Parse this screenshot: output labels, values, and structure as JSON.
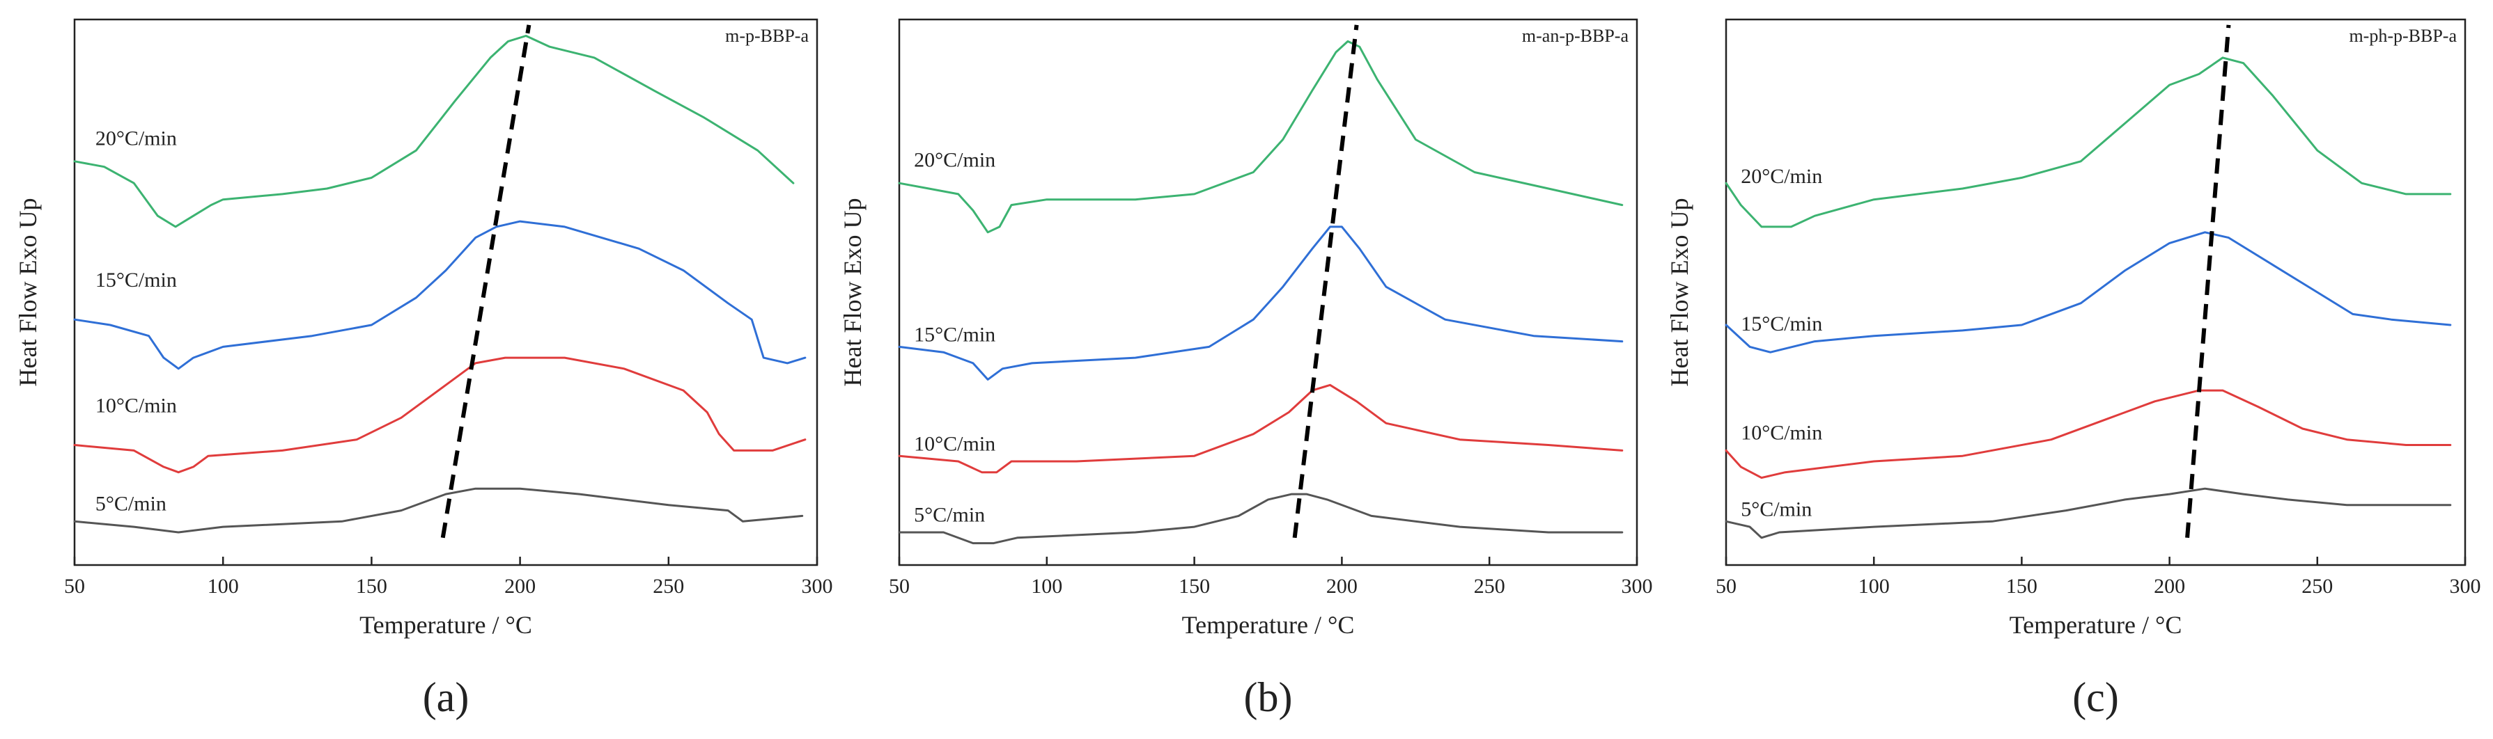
{
  "colors": {
    "20": "#3cb371",
    "15": "#2f6fd6",
    "10": "#e03c3c",
    "5": "#555555",
    "trend": "#000000",
    "axis": "#222222"
  },
  "chart_data": [
    {
      "type": "line",
      "panel_label": "(a)",
      "title": "m-p-BBP-a",
      "xlabel": "Temperature / °C",
      "ylabel": "Heat Flow Exo Up",
      "xlim": [
        50,
        300
      ],
      "ylim": [
        0,
        100
      ],
      "x_ticks": [
        "50",
        "100",
        "150",
        "200",
        "250",
        "300"
      ],
      "grid": false,
      "series": [
        {
          "name": "20°C/min",
          "rate": "20",
          "label_at": [
            57,
            77
          ],
          "points": [
            [
              50,
              74
            ],
            [
              60,
              73
            ],
            [
              70,
              70
            ],
            [
              78,
              64
            ],
            [
              84,
              62
            ],
            [
              90,
              64
            ],
            [
              96,
              66
            ],
            [
              100,
              67
            ],
            [
              120,
              68
            ],
            [
              135,
              69
            ],
            [
              150,
              71
            ],
            [
              165,
              76
            ],
            [
              178,
              85
            ],
            [
              190,
              93
            ],
            [
              196,
              96
            ],
            [
              202,
              97
            ],
            [
              210,
              95
            ],
            [
              225,
              93
            ],
            [
              245,
              87
            ],
            [
              262,
              82
            ],
            [
              280,
              76
            ],
            [
              292,
              70
            ]
          ]
        },
        {
          "name": "15°C/min",
          "rate": "15",
          "label_at": [
            57,
            51
          ],
          "points": [
            [
              50,
              45
            ],
            [
              62,
              44
            ],
            [
              75,
              42
            ],
            [
              80,
              38
            ],
            [
              85,
              36
            ],
            [
              90,
              38
            ],
            [
              100,
              40
            ],
            [
              130,
              42
            ],
            [
              150,
              44
            ],
            [
              165,
              49
            ],
            [
              175,
              54
            ],
            [
              185,
              60
            ],
            [
              192,
              62
            ],
            [
              200,
              63
            ],
            [
              215,
              62
            ],
            [
              240,
              58
            ],
            [
              255,
              54
            ],
            [
              270,
              48
            ],
            [
              278,
              45
            ],
            [
              282,
              38
            ],
            [
              290,
              37
            ],
            [
              296,
              38
            ]
          ]
        },
        {
          "name": "10°C/min",
          "rate": "10",
          "label_at": [
            57,
            28
          ],
          "points": [
            [
              50,
              22
            ],
            [
              70,
              21
            ],
            [
              80,
              18
            ],
            [
              85,
              17
            ],
            [
              90,
              18
            ],
            [
              95,
              20
            ],
            [
              120,
              21
            ],
            [
              145,
              23
            ],
            [
              160,
              27
            ],
            [
              175,
              33
            ],
            [
              185,
              37
            ],
            [
              195,
              38
            ],
            [
              215,
              38
            ],
            [
              235,
              36
            ],
            [
              255,
              32
            ],
            [
              263,
              28
            ],
            [
              267,
              24
            ],
            [
              272,
              21
            ],
            [
              285,
              21
            ],
            [
              296,
              23
            ]
          ]
        },
        {
          "name": "5°C/min",
          "rate": "5",
          "label_at": [
            57,
            10
          ],
          "points": [
            [
              50,
              8
            ],
            [
              70,
              7
            ],
            [
              85,
              6
            ],
            [
              100,
              7
            ],
            [
              140,
              8
            ],
            [
              160,
              10
            ],
            [
              175,
              13
            ],
            [
              185,
              14
            ],
            [
              200,
              14
            ],
            [
              220,
              13
            ],
            [
              250,
              11
            ],
            [
              270,
              10
            ],
            [
              275,
              8
            ],
            [
              295,
              9
            ]
          ]
        }
      ],
      "trend_line": {
        "x": [
          174,
          203
        ]
      }
    },
    {
      "type": "line",
      "panel_label": "(b)",
      "title": "m-an-p-BBP-a",
      "xlabel": "Temperature / °C",
      "ylabel": "Heat Flow Exo Up",
      "xlim": [
        50,
        300
      ],
      "ylim": [
        0,
        100
      ],
      "x_ticks": [
        "50",
        "100",
        "150",
        "200",
        "250",
        "300"
      ],
      "grid": false,
      "series": [
        {
          "name": "20°C/min",
          "rate": "20",
          "label_at": [
            55,
            73
          ],
          "points": [
            [
              50,
              70
            ],
            [
              60,
              69
            ],
            [
              70,
              68
            ],
            [
              75,
              65
            ],
            [
              80,
              61
            ],
            [
              84,
              62
            ],
            [
              88,
              66
            ],
            [
              100,
              67
            ],
            [
              130,
              67
            ],
            [
              150,
              68
            ],
            [
              170,
              72
            ],
            [
              180,
              78
            ],
            [
              190,
              87
            ],
            [
              198,
              94
            ],
            [
              202,
              96
            ],
            [
              206,
              95
            ],
            [
              212,
              89
            ],
            [
              225,
              78
            ],
            [
              245,
              72
            ],
            [
              270,
              69
            ],
            [
              295,
              66
            ]
          ]
        },
        {
          "name": "15°C/min",
          "rate": "15",
          "label_at": [
            55,
            41
          ],
          "points": [
            [
              50,
              40
            ],
            [
              65,
              39
            ],
            [
              75,
              37
            ],
            [
              80,
              34
            ],
            [
              85,
              36
            ],
            [
              95,
              37
            ],
            [
              130,
              38
            ],
            [
              155,
              40
            ],
            [
              170,
              45
            ],
            [
              180,
              51
            ],
            [
              190,
              58
            ],
            [
              196,
              62
            ],
            [
              200,
              62
            ],
            [
              206,
              58
            ],
            [
              215,
              51
            ],
            [
              235,
              45
            ],
            [
              265,
              42
            ],
            [
              295,
              41
            ]
          ]
        },
        {
          "name": "10°C/min",
          "rate": "10",
          "label_at": [
            55,
            21
          ],
          "points": [
            [
              50,
              20
            ],
            [
              70,
              19
            ],
            [
              78,
              17
            ],
            [
              83,
              17
            ],
            [
              88,
              19
            ],
            [
              110,
              19
            ],
            [
              150,
              20
            ],
            [
              170,
              24
            ],
            [
              182,
              28
            ],
            [
              190,
              32
            ],
            [
              196,
              33
            ],
            [
              205,
              30
            ],
            [
              215,
              26
            ],
            [
              240,
              23
            ],
            [
              270,
              22
            ],
            [
              295,
              21
            ]
          ]
        },
        {
          "name": "5°C/min",
          "rate": "5",
          "label_at": [
            55,
            8
          ],
          "points": [
            [
              50,
              6
            ],
            [
              65,
              6
            ],
            [
              75,
              4
            ],
            [
              82,
              4
            ],
            [
              90,
              5
            ],
            [
              130,
              6
            ],
            [
              150,
              7
            ],
            [
              165,
              9
            ],
            [
              175,
              12
            ],
            [
              183,
              13
            ],
            [
              188,
              13
            ],
            [
              195,
              12
            ],
            [
              210,
              9
            ],
            [
              240,
              7
            ],
            [
              270,
              6
            ],
            [
              295,
              6
            ]
          ]
        }
      ],
      "trend_line": {
        "x": [
          184,
          205
        ]
      }
    },
    {
      "type": "line",
      "panel_label": "(c)",
      "title": "m-ph-p-BBP-a",
      "xlabel": "Temperature / °C",
      "ylabel": "Heat Flow Exo Up",
      "xlim": [
        50,
        300
      ],
      "ylim": [
        0,
        100
      ],
      "x_ticks": [
        "50",
        "100",
        "150",
        "200",
        "250",
        "300"
      ],
      "grid": false,
      "series": [
        {
          "name": "20°C/min",
          "rate": "20",
          "label_at": [
            55,
            70
          ],
          "points": [
            [
              50,
              70
            ],
            [
              55,
              66
            ],
            [
              62,
              62
            ],
            [
              72,
              62
            ],
            [
              80,
              64
            ],
            [
              100,
              67
            ],
            [
              130,
              69
            ],
            [
              150,
              71
            ],
            [
              170,
              74
            ],
            [
              185,
              81
            ],
            [
              200,
              88
            ],
            [
              210,
              90
            ],
            [
              218,
              93
            ],
            [
              225,
              92
            ],
            [
              235,
              86
            ],
            [
              250,
              76
            ],
            [
              265,
              70
            ],
            [
              280,
              68
            ],
            [
              295,
              68
            ]
          ]
        },
        {
          "name": "15°C/min",
          "rate": "15",
          "label_at": [
            55,
            43
          ],
          "points": [
            [
              50,
              44
            ],
            [
              58,
              40
            ],
            [
              65,
              39
            ],
            [
              80,
              41
            ],
            [
              100,
              42
            ],
            [
              130,
              43
            ],
            [
              150,
              44
            ],
            [
              170,
              48
            ],
            [
              185,
              54
            ],
            [
              200,
              59
            ],
            [
              212,
              61
            ],
            [
              220,
              60
            ],
            [
              235,
              55
            ],
            [
              250,
              50
            ],
            [
              262,
              46
            ],
            [
              275,
              45
            ],
            [
              295,
              44
            ]
          ]
        },
        {
          "name": "10°C/min",
          "rate": "10",
          "label_at": [
            55,
            23
          ],
          "points": [
            [
              50,
              21
            ],
            [
              55,
              18
            ],
            [
              62,
              16
            ],
            [
              70,
              17
            ],
            [
              100,
              19
            ],
            [
              130,
              20
            ],
            [
              160,
              23
            ],
            [
              180,
              27
            ],
            [
              195,
              30
            ],
            [
              210,
              32
            ],
            [
              218,
              32
            ],
            [
              230,
              29
            ],
            [
              245,
              25
            ],
            [
              260,
              23
            ],
            [
              280,
              22
            ],
            [
              295,
              22
            ]
          ]
        },
        {
          "name": "5°C/min",
          "rate": "5",
          "label_at": [
            55,
            9
          ],
          "points": [
            [
              50,
              8
            ],
            [
              58,
              7
            ],
            [
              62,
              5
            ],
            [
              68,
              6
            ],
            [
              100,
              7
            ],
            [
              140,
              8
            ],
            [
              165,
              10
            ],
            [
              185,
              12
            ],
            [
              200,
              13
            ],
            [
              212,
              14
            ],
            [
              225,
              13
            ],
            [
              240,
              12
            ],
            [
              260,
              11
            ],
            [
              280,
              11
            ],
            [
              295,
              11
            ]
          ]
        }
      ],
      "trend_line": {
        "x": [
          206,
          220
        ]
      }
    }
  ]
}
